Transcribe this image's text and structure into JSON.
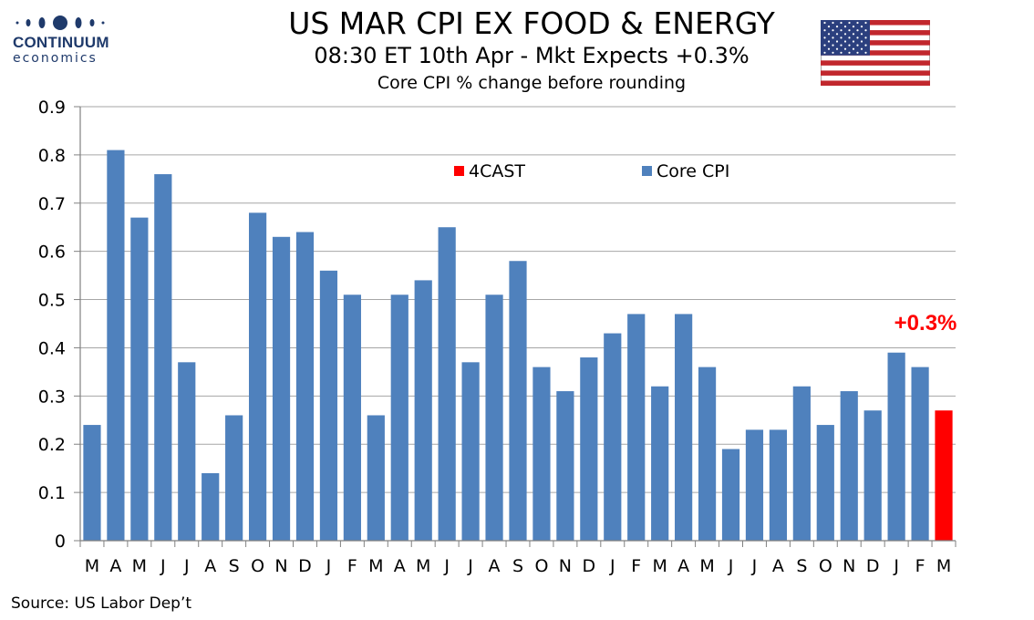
{
  "logo": {
    "line1": "CONTINUUM",
    "line2": "economics"
  },
  "header": {
    "title": "US MAR CPI EX FOOD & ENERGY",
    "subtitle": "08:30 ET 10th Apr - Mkt Expects +0.3%",
    "subtitle2": "Core CPI % change before rounding"
  },
  "footer": {
    "source": "Source: US Labor Dep’t"
  },
  "colors": {
    "core_cpi": "#4f81bd",
    "forecast": "#ff0000",
    "grid": "#a6a6a6",
    "axis": "#808080"
  },
  "flag_icon": "us-flag-icon",
  "chart_data": {
    "type": "bar",
    "title": "US MAR CPI EX FOOD & ENERGY",
    "subtitle": "Core CPI % change before rounding",
    "xlabel": "",
    "ylabel": "",
    "ylim": [
      0,
      0.9
    ],
    "yticks": [
      "0",
      "0.1",
      "0.2",
      "0.3",
      "0.4",
      "0.5",
      "0.6",
      "0.7",
      "0.8",
      "0.9"
    ],
    "grid": true,
    "legend_position": "top-center",
    "categories": [
      "M",
      "A",
      "M",
      "J",
      "J",
      "A",
      "S",
      "O",
      "N",
      "D",
      "J",
      "F",
      "M",
      "A",
      "M",
      "J",
      "J",
      "A",
      "S",
      "O",
      "N",
      "D",
      "J",
      "F",
      "M",
      "A",
      "M",
      "J",
      "J",
      "A",
      "S",
      "O",
      "N",
      "D",
      "J",
      "F",
      "M"
    ],
    "series": [
      {
        "name": "Core CPI",
        "values": [
          0.24,
          0.81,
          0.67,
          0.76,
          0.37,
          0.14,
          0.26,
          0.68,
          0.63,
          0.64,
          0.56,
          0.51,
          0.26,
          0.51,
          0.54,
          0.65,
          0.37,
          0.51,
          0.58,
          0.36,
          0.31,
          0.38,
          0.43,
          0.47,
          0.32,
          0.47,
          0.36,
          0.19,
          0.23,
          0.23,
          0.32,
          0.24,
          0.31,
          0.27,
          0.39,
          0.36,
          null
        ]
      },
      {
        "name": "4CAST",
        "values": [
          null,
          null,
          null,
          null,
          null,
          null,
          null,
          null,
          null,
          null,
          null,
          null,
          null,
          null,
          null,
          null,
          null,
          null,
          null,
          null,
          null,
          null,
          null,
          null,
          null,
          null,
          null,
          null,
          null,
          null,
          null,
          null,
          null,
          null,
          null,
          null,
          0.27
        ]
      }
    ],
    "annotations": [
      {
        "text": "+0.3%",
        "category_index": 36
      }
    ]
  }
}
